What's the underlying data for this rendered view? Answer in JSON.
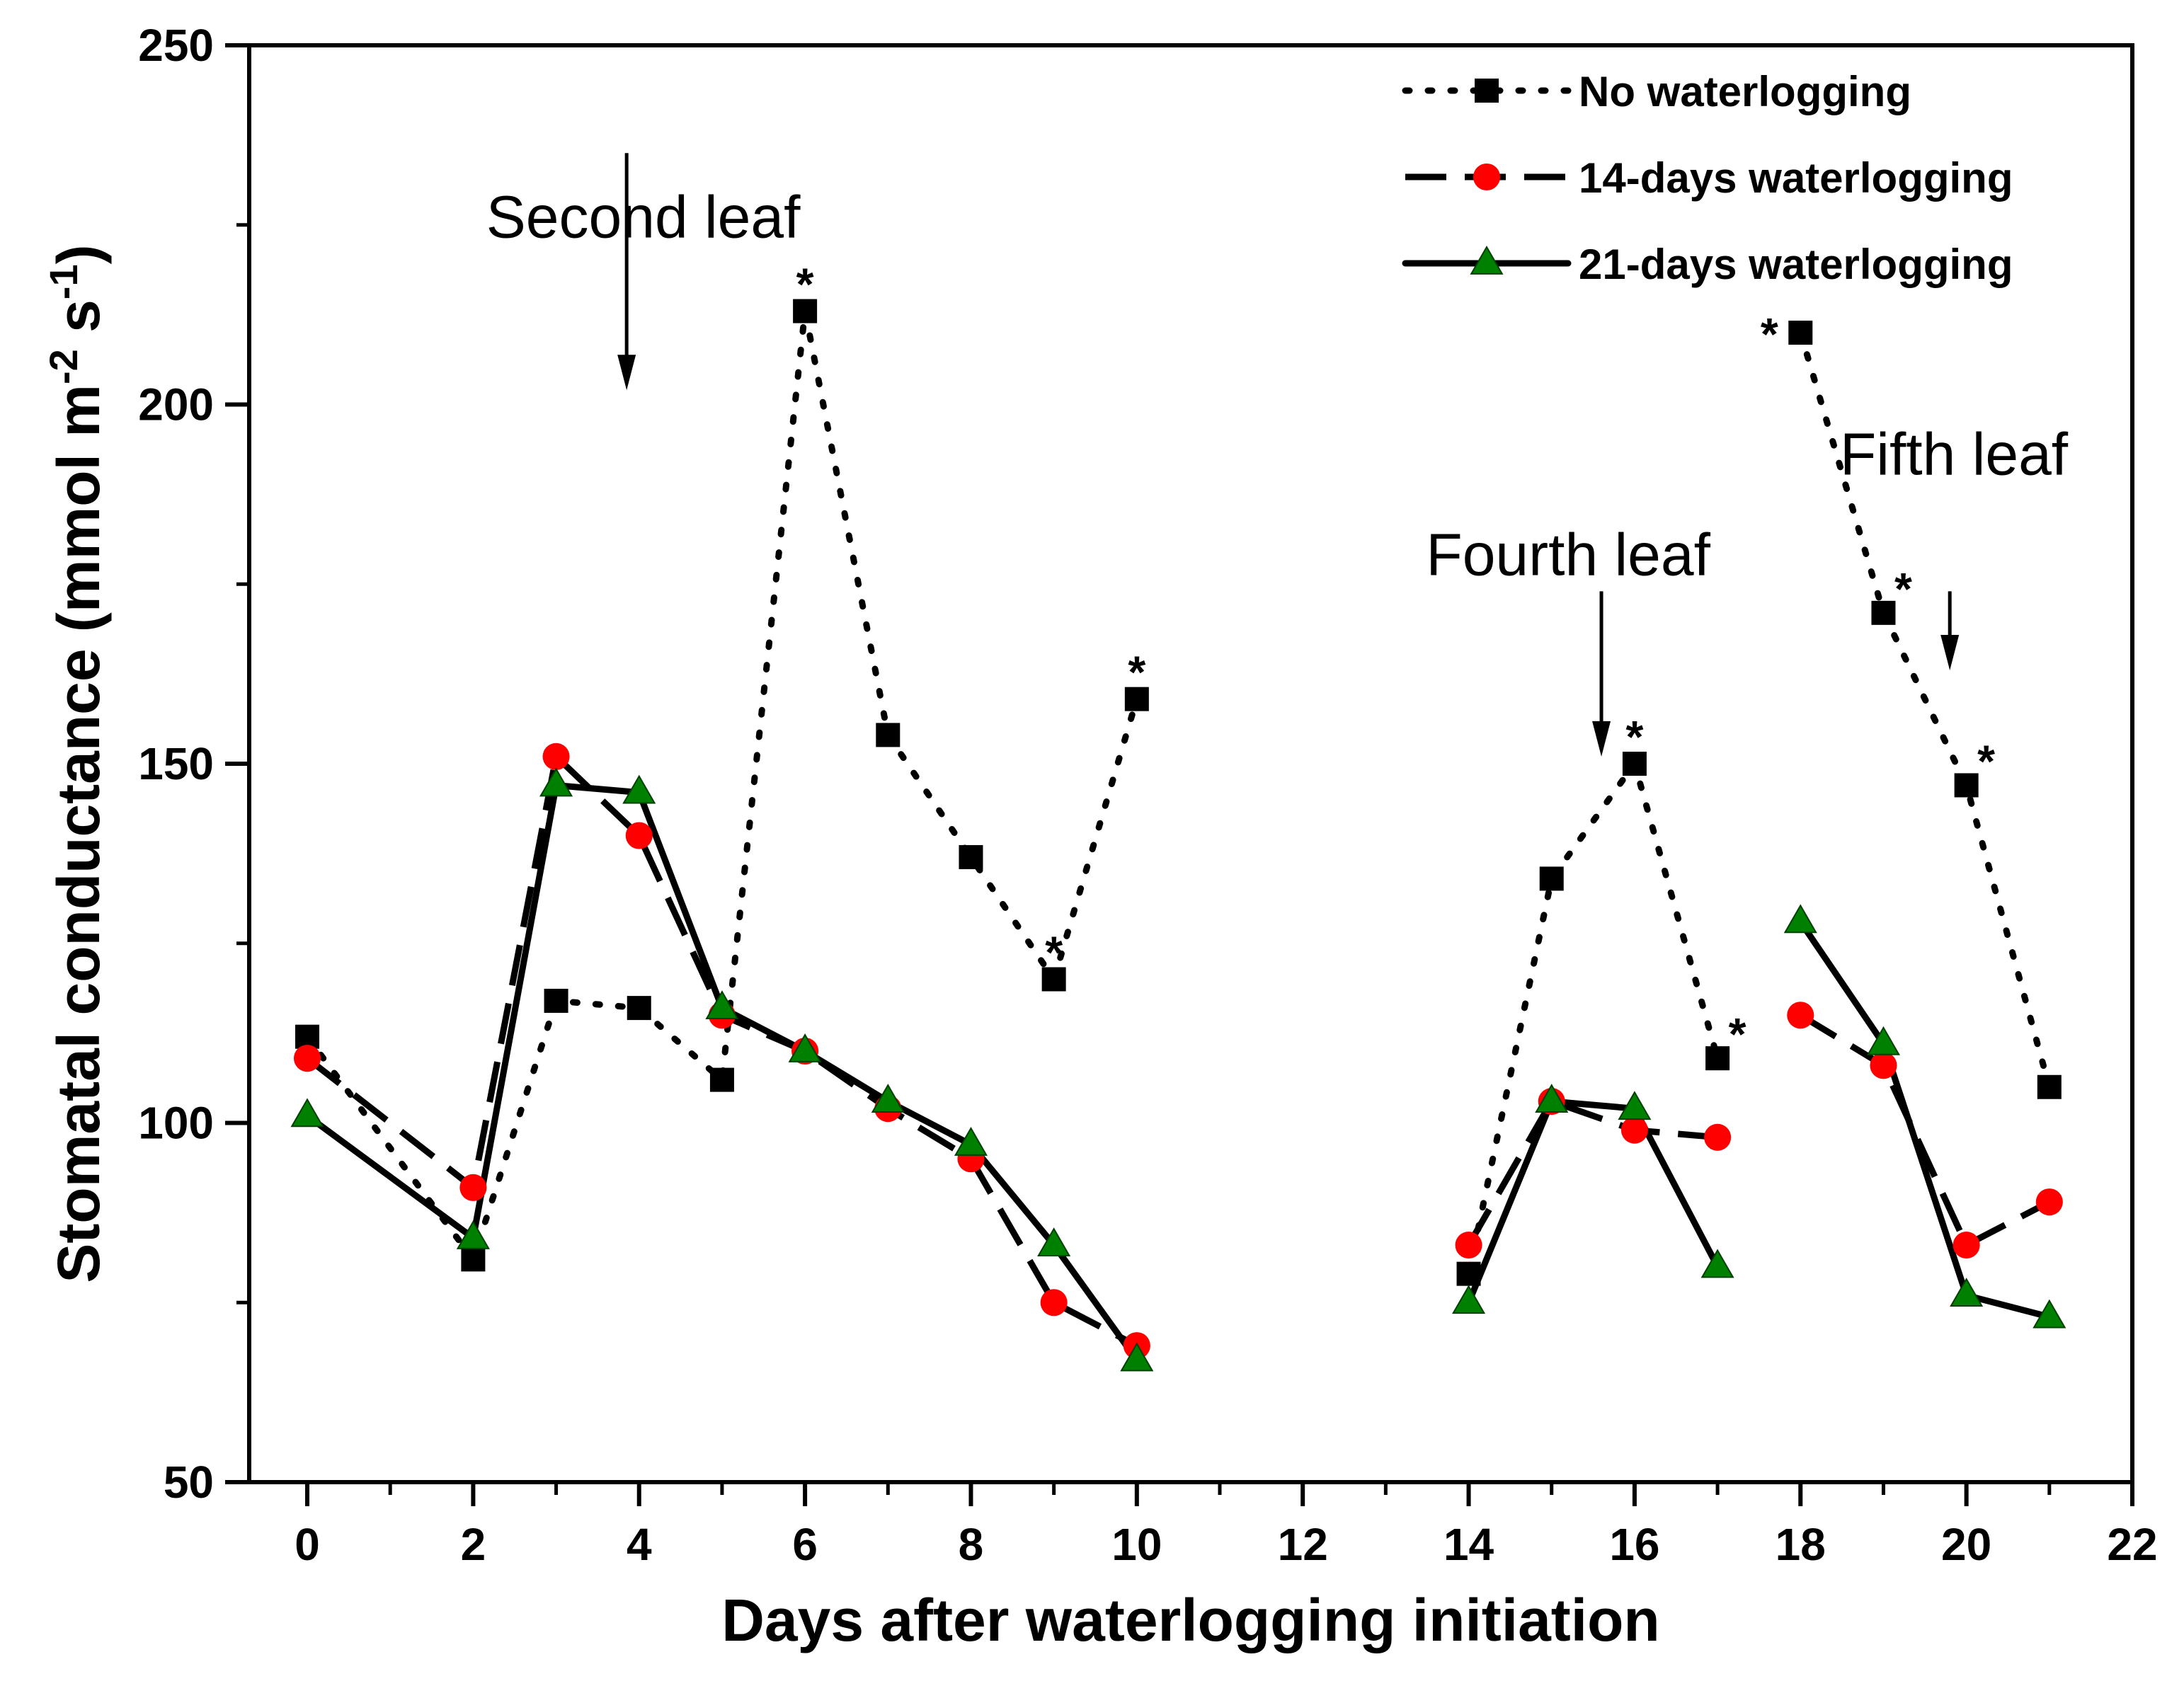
{
  "chart_data": {
    "type": "line",
    "title": "",
    "xlabel": "Days after waterlogging initiation",
    "ylabel": "Stomatal conductance (mmol m-2 s-1)",
    "ylabel_parts": {
      "pre": "Stomatal conductance (mmol m",
      "sup1": "-2",
      "mid": " s",
      "sup2": "-1",
      "post": ")"
    },
    "xlim": [
      -0.7,
      22
    ],
    "ylim": [
      50,
      250
    ],
    "xticks": [
      0,
      2,
      4,
      6,
      8,
      10,
      12,
      14,
      16,
      18,
      20,
      22
    ],
    "xtick_labels": [
      "0",
      "2",
      "4",
      "6",
      "8",
      "10",
      "12",
      "14",
      "16",
      "18",
      "20",
      "22"
    ],
    "yticks": [
      50,
      100,
      150,
      200,
      250
    ],
    "ytick_labels": [
      "50",
      "100",
      "150",
      "200",
      "250"
    ],
    "grid": false,
    "legend_position": "top-right",
    "series": [
      {
        "name": "No waterlogging",
        "color": "#000000",
        "marker": "square",
        "line": "dotted",
        "segments": [
          [
            [
              0,
              112
            ],
            [
              2,
              81
            ],
            [
              3,
              117
            ],
            [
              4,
              116
            ],
            [
              5,
              106
            ],
            [
              6,
              213
            ],
            [
              7,
              154
            ],
            [
              8,
              137
            ],
            [
              9,
              120
            ],
            [
              10,
              159
            ]
          ],
          [
            [
              14,
              79
            ],
            [
              15,
              134
            ],
            [
              16,
              150
            ],
            [
              17,
              109
            ]
          ],
          [
            [
              18,
              210
            ],
            [
              19,
              171
            ],
            [
              20,
              147
            ],
            [
              21,
              105
            ]
          ]
        ]
      },
      {
        "name": "14-days waterlogging",
        "color": "#ff0000",
        "marker": "circle",
        "line": "dashed",
        "segments": [
          [
            [
              0,
              109
            ],
            [
              2,
              91
            ],
            [
              3,
              151
            ],
            [
              4,
              140
            ],
            [
              5,
              115
            ],
            [
              6,
              110
            ],
            [
              7,
              102
            ],
            [
              8,
              95
            ],
            [
              9,
              75
            ],
            [
              10,
              69
            ]
          ],
          [
            [
              14,
              83
            ],
            [
              15,
              103
            ],
            [
              16,
              99
            ],
            [
              17,
              98
            ]
          ],
          [
            [
              18,
              115
            ],
            [
              19,
              108
            ],
            [
              20,
              83
            ],
            [
              21,
              89
            ]
          ]
        ]
      },
      {
        "name": "21-days waterlogging",
        "color": "#008000",
        "marker": "triangle",
        "line": "solid",
        "segments": [
          [
            [
              0,
              101
            ],
            [
              2,
              84
            ],
            [
              3,
              147
            ],
            [
              4,
              146
            ],
            [
              5,
              116
            ],
            [
              6,
              110
            ],
            [
              7,
              103
            ],
            [
              8,
              97
            ],
            [
              9,
              83
            ],
            [
              10,
              67
            ]
          ],
          [
            [
              14,
              75
            ],
            [
              15,
              103
            ],
            [
              16,
              102
            ],
            [
              17,
              80
            ]
          ],
          [
            [
              18,
              128
            ],
            [
              19,
              111
            ],
            [
              20,
              76
            ],
            [
              21,
              73
            ]
          ]
        ]
      }
    ],
    "significance_marks": [
      {
        "x": 6,
        "y": 213,
        "text": "*",
        "side": "above"
      },
      {
        "x": 9,
        "y": 120,
        "text": "*",
        "side": "above"
      },
      {
        "x": 10,
        "y": 159,
        "text": "*",
        "side": "above"
      },
      {
        "x": 16,
        "y": 150,
        "text": "*",
        "side": "above"
      },
      {
        "x": 17,
        "y": 109,
        "text": "*",
        "side": "above-right"
      },
      {
        "x": 18,
        "y": 210,
        "text": "*",
        "side": "left"
      },
      {
        "x": 19,
        "y": 171,
        "text": "*",
        "side": "above-right"
      },
      {
        "x": 20,
        "y": 147,
        "text": "*",
        "side": "above-right"
      }
    ],
    "annotations": [
      {
        "text": "Second leaf",
        "arrow_x": 3.85,
        "arrow_from": 235,
        "arrow_to": 202,
        "label_x": 4.05,
        "label_y": 226
      },
      {
        "text": "Fourth leaf",
        "arrow_x": 15.6,
        "arrow_from": 174,
        "arrow_to": 151,
        "label_x": 15.2,
        "label_y": 179
      },
      {
        "text": "Fifth leaf",
        "arrow_x": 19.8,
        "arrow_from": 174,
        "arrow_to": 163,
        "label_x": 19.85,
        "label_y": 193
      }
    ]
  }
}
